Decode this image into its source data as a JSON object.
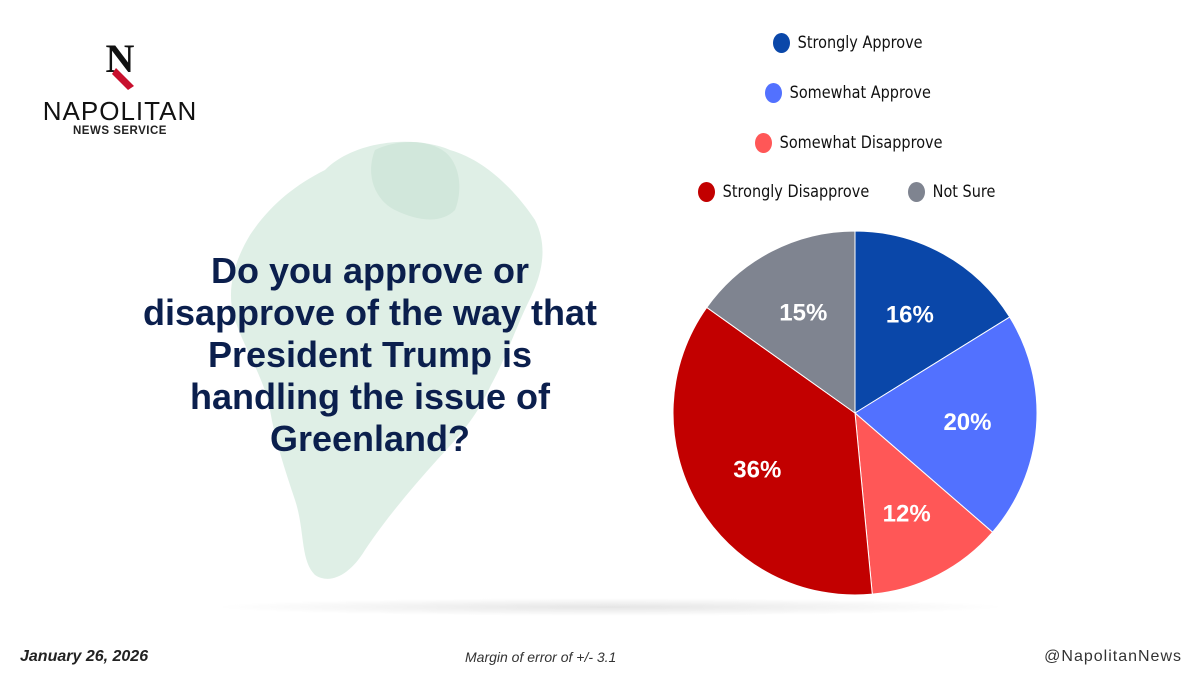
{
  "brand": {
    "logo_text": "N",
    "name": "NAPOLITAN",
    "subtitle": "NEWS SERVICE",
    "colors": {
      "mark": "#111111",
      "accent": "#c8102e"
    }
  },
  "question": "Do you approve or disapprove of the way that President Trump is handling the issue of Greenland?",
  "background_icon": "greenland-map-icon",
  "chart_data": {
    "type": "pie",
    "slices": [
      {
        "name": "Strongly Approve",
        "value": 16,
        "label": "16%",
        "color": "#0a47a9"
      },
      {
        "name": "Somewhat Approve",
        "value": 20,
        "label": "20%",
        "color": "#5271ff"
      },
      {
        "name": "Somewhat Disapprove",
        "value": 12,
        "label": "12%",
        "color": "#ff5757"
      },
      {
        "name": "Strongly Disapprove",
        "value": 36,
        "label": "36%",
        "color": "#c20000"
      },
      {
        "name": "Not Sure",
        "value": 15,
        "label": "15%",
        "color": "#7f8490"
      }
    ],
    "legend": "top",
    "start_angle_deg": 0,
    "direction": "clockwise"
  },
  "footer": {
    "date": "January 26, 2026",
    "margin_of_error": "Margin of error of +/- 3.1",
    "handle": "@NapolitanNews"
  }
}
